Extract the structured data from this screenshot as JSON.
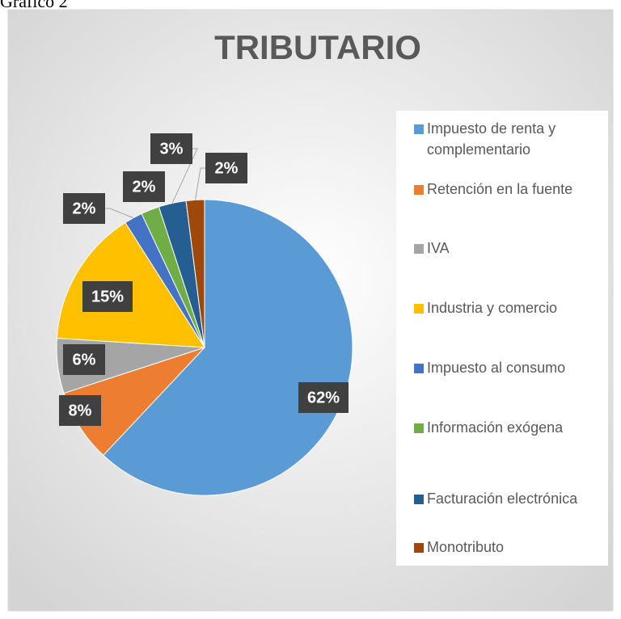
{
  "caption": "Gráfico 2",
  "chart_data": {
    "type": "pie",
    "title": "TRIBUTARIO",
    "categories": [
      "Impuesto de renta y complementario",
      "Retención en la fuente",
      "IVA",
      "Industria y comercio",
      "Impuesto al consumo",
      "Información exógena",
      "Facturación electrónica",
      "Monotributo"
    ],
    "values": [
      62,
      8,
      6,
      15,
      2,
      2,
      3,
      2
    ],
    "value_labels": [
      "62%",
      "8%",
      "6%",
      "15%",
      "2%",
      "2%",
      "3%",
      "2%"
    ],
    "colors": [
      "#5b9bd5",
      "#ed7d31",
      "#a5a5a5",
      "#ffc000",
      "#4472c4",
      "#70ad47",
      "#255e91",
      "#9e480e"
    ],
    "legend": "right"
  }
}
